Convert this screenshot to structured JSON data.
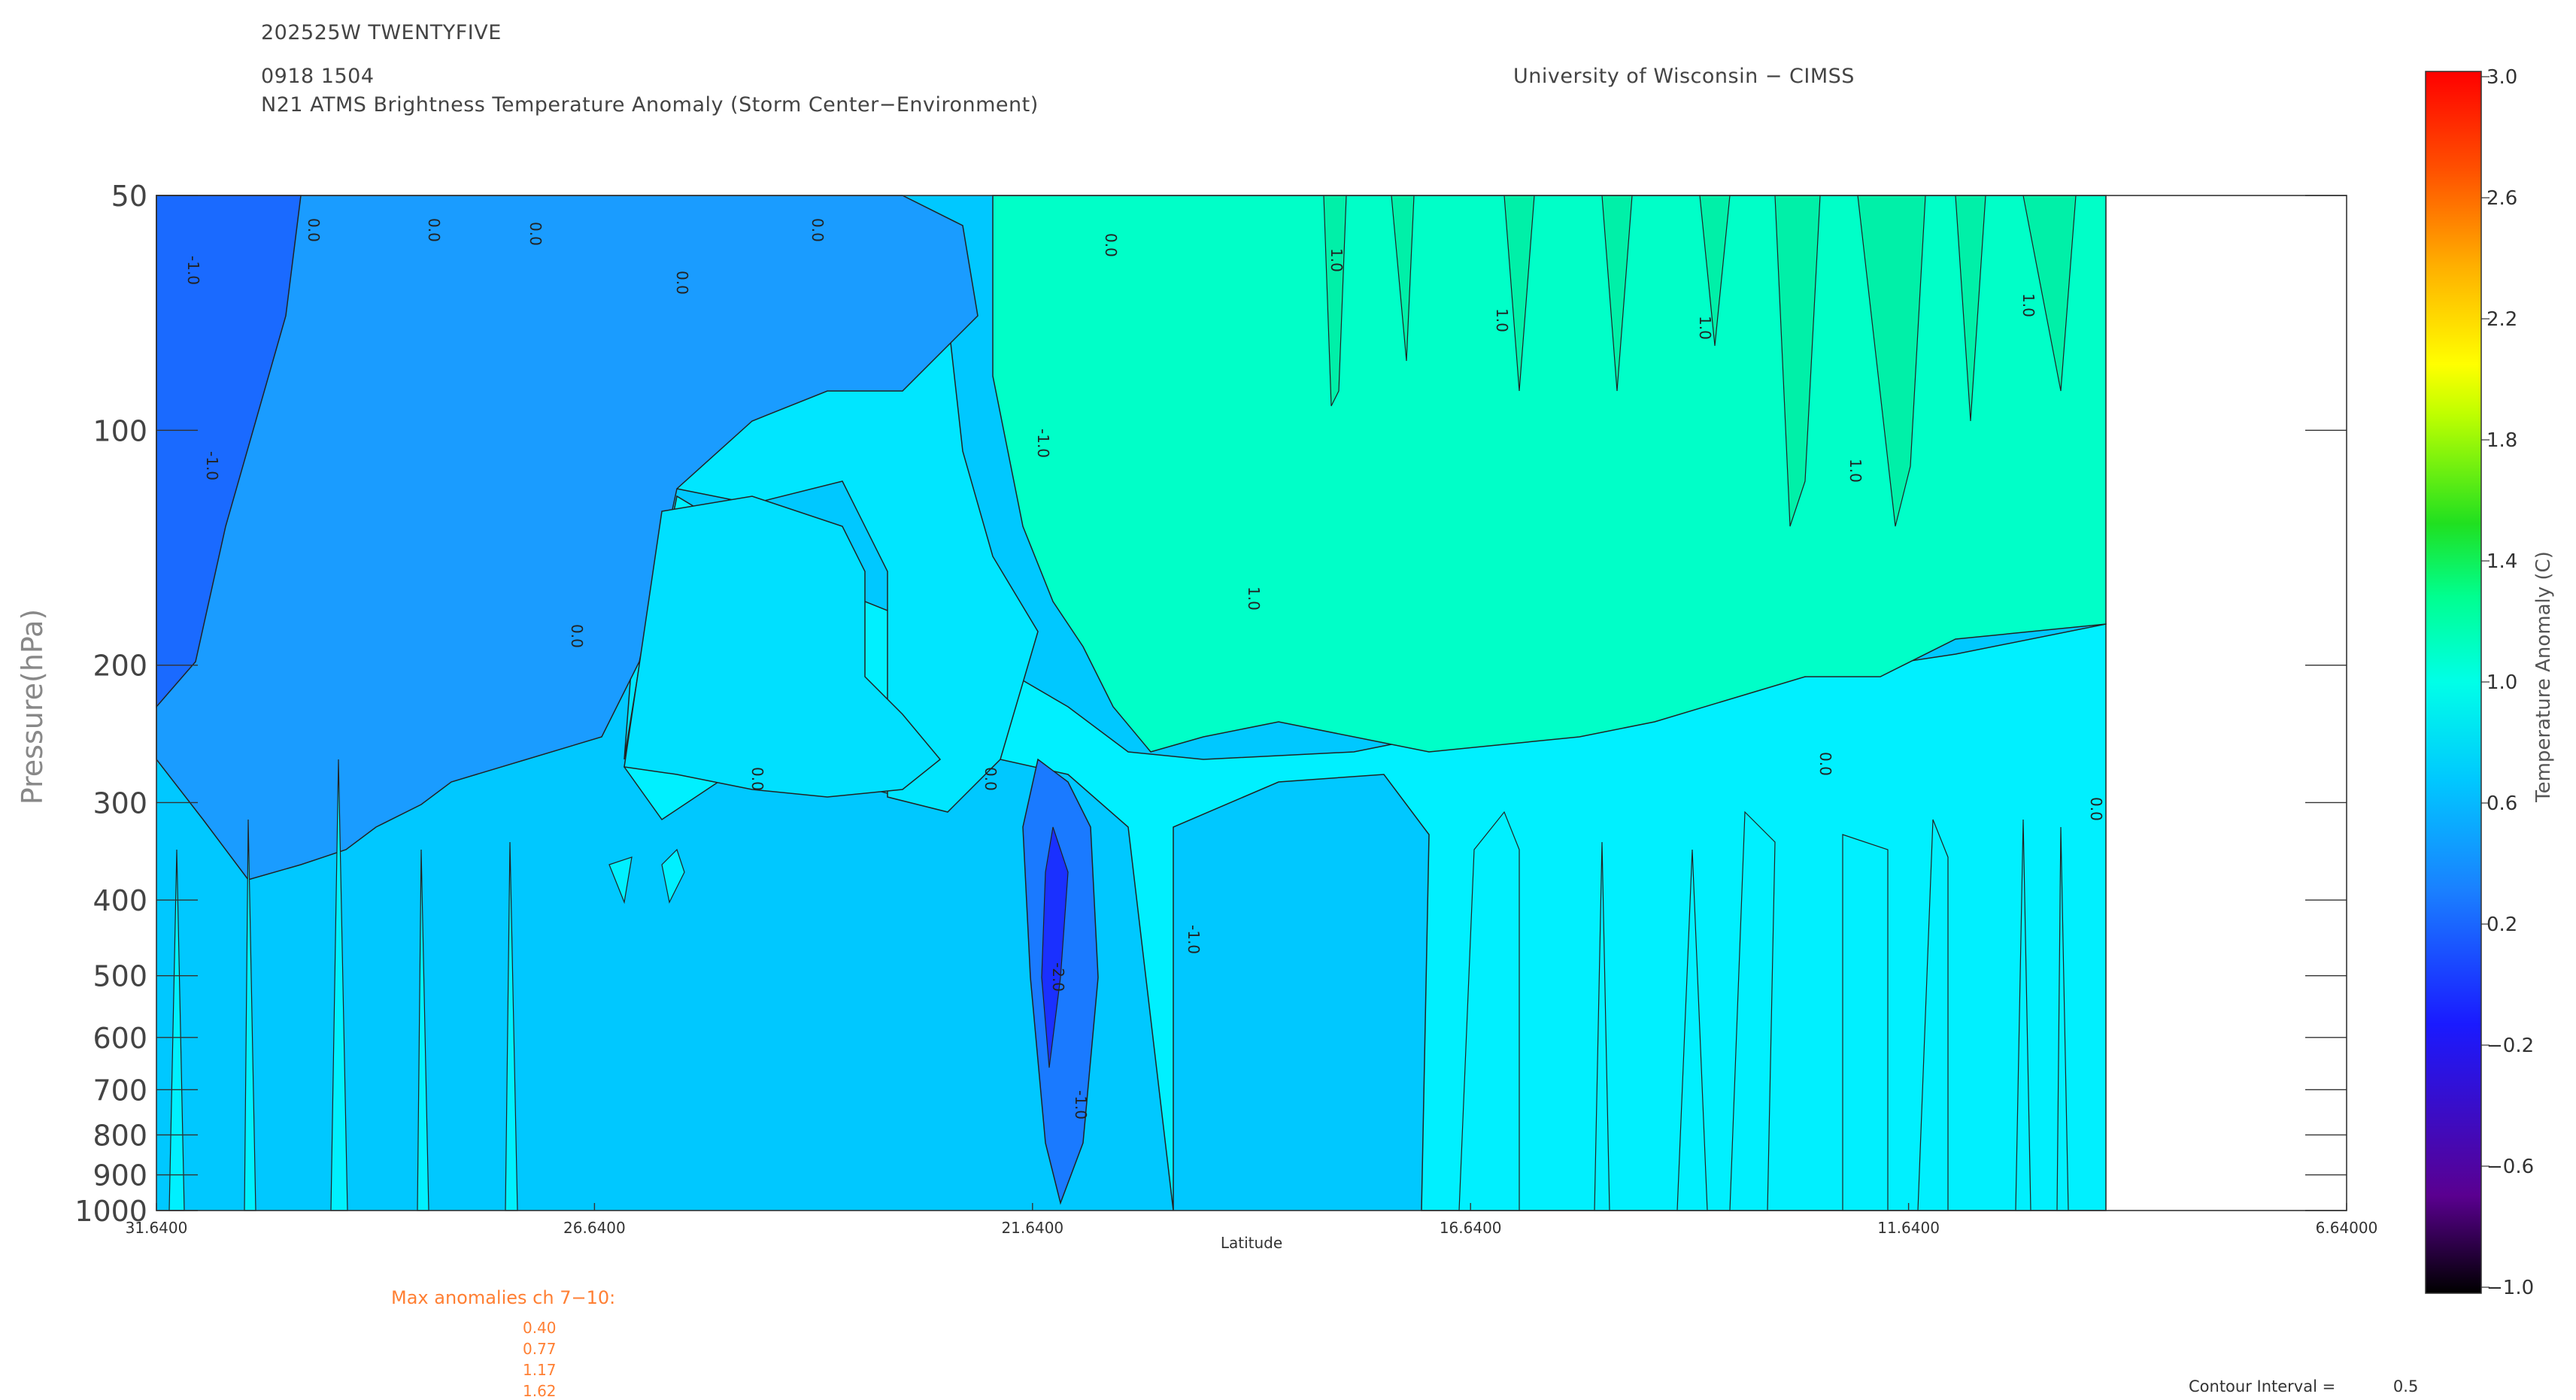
{
  "header": {
    "storm_id": "202525W TWENTYFIVE",
    "datetime": "0918 1504",
    "product": "N21 ATMS Brightness Temperature Anomaly (Storm Center−Environment)",
    "institution": "University of Wisconsin − CIMSS"
  },
  "max_anomalies": {
    "label": "Max anomalies ch 7−10:",
    "values": [
      "0.40",
      "0.77",
      "1.17",
      "1.62"
    ]
  },
  "contour_interval": {
    "label": "Contour Interval =",
    "value": "0.5"
  },
  "colorbar": {
    "label": "Temperature Anomaly (C)",
    "ticks": [
      "3.0",
      "2.6",
      "2.2",
      "1.8",
      "1.4",
      "1.0",
      "0.6",
      "0.2",
      "−0.2",
      "−0.6",
      "−1.0"
    ],
    "range": [
      -1.0,
      3.0
    ],
    "colors": [
      "#000000",
      "#6a00b0",
      "#1a1aff",
      "#1a7aff",
      "#00c0ff",
      "#00ffe0",
      "#00ff80",
      "#30e000",
      "#c0ff00",
      "#ffff00",
      "#ffb000",
      "#ff5000",
      "#ff0000"
    ]
  },
  "chart_data": {
    "type": "heatmap",
    "title": "N21 ATMS Brightness Temperature Anomaly (Storm Center−Environment)",
    "xlabel": "Latitude",
    "ylabel": "Pressure(hPa)",
    "x_ticks": [
      "31.6400",
      "26.6400",
      "21.6400",
      "16.6400",
      "11.6400",
      "6.64000"
    ],
    "x_range": [
      31.64,
      6.64
    ],
    "data_x_extent": [
      31.64,
      9.5
    ],
    "y_ticks": [
      "50",
      "100",
      "200",
      "300",
      "400",
      "500",
      "600",
      "700",
      "800",
      "900",
      "1000"
    ],
    "y_range": [
      1000,
      50
    ],
    "y_scale": "log",
    "contour_labels": [
      "-1.0",
      "0.0",
      "1.0",
      "-2.0"
    ],
    "regions": [
      {
        "name": "upper-west-cold",
        "level": 0.3,
        "lat": [
          31.64,
          27.0
        ],
        "p": [
          50,
          300
        ]
      },
      {
        "name": "core-cold",
        "level": -0.3,
        "lat": [
          21.9,
          21.4
        ],
        "p": [
          330,
          800
        ]
      },
      {
        "name": "upper-east-warm",
        "level": 1.0,
        "lat": [
          21.0,
          9.5
        ],
        "p": [
          50,
          230
        ]
      },
      {
        "name": "mid-east",
        "level": 0.6,
        "lat": [
          21.0,
          9.5
        ],
        "p": [
          230,
          1000
        ]
      }
    ]
  }
}
